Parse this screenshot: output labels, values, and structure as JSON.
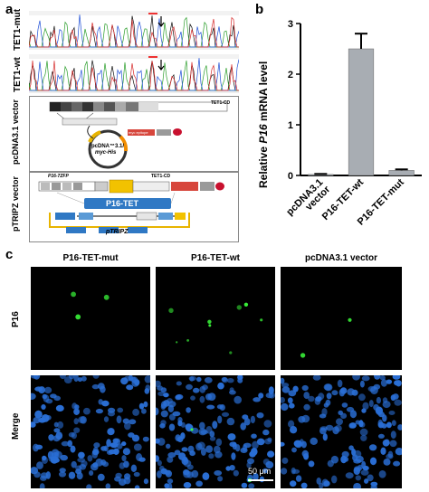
{
  "panel_labels": {
    "a": "a",
    "b": "b",
    "c": "c"
  },
  "panel_a": {
    "chromatogram_labels": [
      "TET1-mut",
      "TET1-wt"
    ],
    "pcdna": {
      "row_label": "pcDNA3.1 vector",
      "plasmid_name_line1": "pcDNA™3.1/",
      "plasmid_name_line2": "myc-His",
      "construct_end_label": "TET1-CD",
      "tag_label": "myc epitope"
    },
    "ptripz": {
      "row_label": "pTRIPZ vector",
      "zfp_label": "P16-7ZFP",
      "cd_label": "TET1-CD",
      "fusion_label": "P16-TET",
      "plasmid_name": "pTRIPZ"
    }
  },
  "chart_data": {
    "type": "bar",
    "categories": [
      "pcDNA3.1 vector",
      "P16-TET-wt",
      "P16-TET-mut"
    ],
    "category_lines": [
      [
        "pcDNA3.1",
        "vector"
      ],
      [
        "P16-TET-wt"
      ],
      [
        "P16-TET-mut"
      ]
    ],
    "values": [
      0.02,
      2.5,
      0.1
    ],
    "errors": [
      0.01,
      0.3,
      0.02
    ],
    "ylabel_parts": [
      "Relative ",
      "P16",
      " mRNA level"
    ],
    "ylim": [
      0,
      3
    ],
    "yticks": [
      "0",
      "1",
      "2",
      "3"
    ],
    "bar_color": "#a8adb3",
    "grid": false
  },
  "panel_c": {
    "columns": [
      "P16-TET-mut",
      "P16-TET-wt",
      "pcDNA3.1 vector"
    ],
    "rows": [
      "P16",
      "Merge"
    ],
    "scale_bar": "50 μm",
    "colors": {
      "p16_signal": "#3cff3c",
      "nuclei": "#2a6fd6",
      "background": "#000000"
    }
  }
}
